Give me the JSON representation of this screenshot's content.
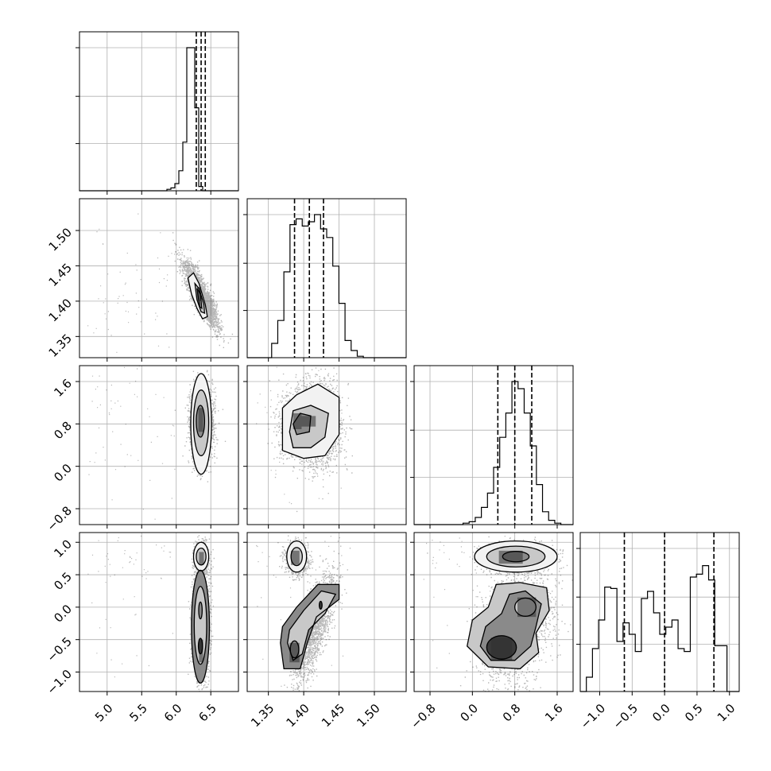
{
  "chart_data": {
    "type": "corner",
    "parameters": [
      {
        "id": "p0",
        "range": [
          4.6,
          6.9
        ],
        "ticks": [
          5.0,
          5.5,
          6.0,
          6.5
        ],
        "tick_labels": [
          "5.0",
          "5.5",
          "6.0",
          "6.5"
        ],
        "quantiles": [
          6.29,
          6.36,
          6.42
        ]
      },
      {
        "id": "p1",
        "range": [
          1.32,
          1.545
        ],
        "ticks": [
          1.35,
          1.4,
          1.45,
          1.5
        ],
        "tick_labels": [
          "1.35",
          "1.40",
          "1.45",
          "1.50"
        ],
        "quantiles": [
          1.387,
          1.408,
          1.428
        ]
      },
      {
        "id": "p2",
        "range": [
          -1.1,
          1.9
        ],
        "ticks": [
          -0.8,
          0.0,
          0.8,
          1.6
        ],
        "tick_labels": [
          "−0.8",
          "0.0",
          "0.8",
          "1.6"
        ],
        "quantiles": [
          0.48,
          0.8,
          1.12
        ]
      },
      {
        "id": "p3",
        "range": [
          -1.3,
          1.15
        ],
        "ticks": [
          -1.0,
          -0.5,
          0.0,
          0.5,
          1.0
        ],
        "tick_labels": [
          "−1.0",
          "−0.5",
          "0.0",
          "0.5",
          "1.0"
        ],
        "quantiles": [
          -0.62,
          0.0,
          0.76
        ]
      }
    ],
    "histograms": [
      {
        "param": 0,
        "bins": [
          4.6,
          6.9
        ],
        "counts": [
          0,
          0,
          0,
          0,
          0,
          0,
          0,
          0,
          0,
          0,
          0,
          0,
          0,
          0,
          0,
          0,
          0,
          0,
          0,
          0,
          0,
          0,
          1,
          2,
          5,
          14,
          34,
          100,
          100,
          58,
          3,
          0,
          0,
          0,
          0,
          0,
          0,
          0,
          0,
          0
        ]
      },
      {
        "param": 1,
        "bins": [
          1.32,
          1.545
        ],
        "counts": [
          0,
          0,
          0,
          0,
          10,
          26,
          60,
          93,
          97,
          92,
          95,
          100,
          90,
          84,
          64,
          38,
          12,
          5,
          1,
          0,
          0,
          0,
          0,
          0,
          0,
          0
        ]
      },
      {
        "param": 2,
        "bins": [
          -1.1,
          1.9
        ],
        "counts": [
          0,
          0,
          0,
          0,
          0,
          0,
          0,
          0,
          1,
          2,
          5,
          12,
          22,
          40,
          61,
          78,
          100,
          95,
          78,
          55,
          28,
          9,
          3,
          1,
          0,
          0
        ]
      },
      {
        "param": 3,
        "bins": [
          -1.3,
          1.15
        ],
        "counts": [
          0,
          10,
          30,
          50,
          73,
          72,
          35,
          48,
          40,
          28,
          65,
          70,
          55,
          40,
          45,
          50,
          30,
          28,
          80,
          82,
          88,
          78,
          32,
          32,
          0,
          0
        ]
      }
    ],
    "grid": true,
    "cells": [
      {
        "row": 1,
        "col": 0,
        "x": "p0",
        "y": "p1"
      },
      {
        "row": 2,
        "col": 0,
        "x": "p0",
        "y": "p2"
      },
      {
        "row": 2,
        "col": 1,
        "x": "p1",
        "y": "p2"
      },
      {
        "row": 3,
        "col": 0,
        "x": "p0",
        "y": "p3"
      },
      {
        "row": 3,
        "col": 1,
        "x": "p1",
        "y": "p3"
      },
      {
        "row": 3,
        "col": 2,
        "x": "p2",
        "y": "p3"
      }
    ]
  }
}
